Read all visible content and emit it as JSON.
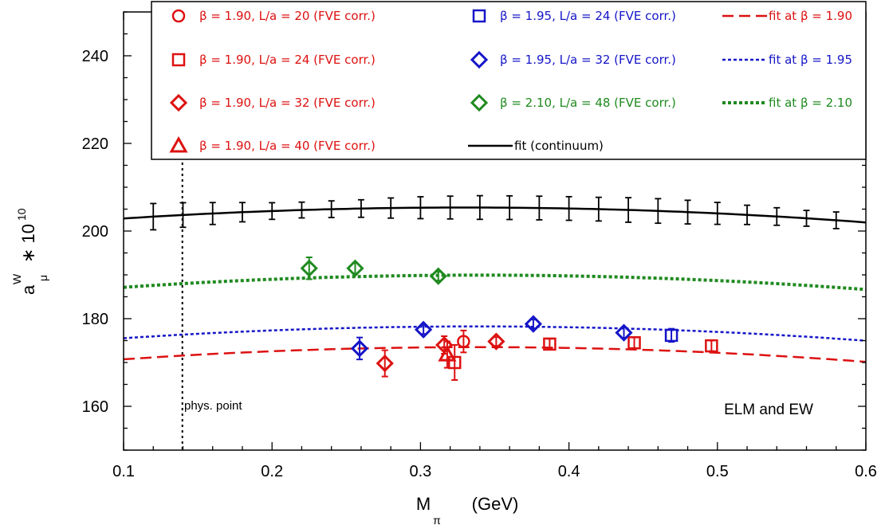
{
  "chart_data": {
    "type": "scatter",
    "xlabel": "M",
    "xlabel_sub": "π",
    "xlabel_unit": "(GeV)",
    "ylabel": "a",
    "ylabel_sub": "μ",
    "ylabel_sup": "W",
    "ylabel_factor": "∗ 10",
    "ylabel_factor_sup": "10",
    "xlim": [
      0.1,
      0.6
    ],
    "ylim": [
      150,
      250
    ],
    "xticks": [
      0.1,
      0.2,
      0.3,
      0.4,
      0.5,
      0.6
    ],
    "xtick_labels": [
      "0.1",
      "0.2",
      "0.3",
      "0.4",
      "0.5",
      "0.6"
    ],
    "yticks": [
      160,
      180,
      200,
      220,
      240
    ],
    "ytick_labels": [
      "160",
      "180",
      "200",
      "220",
      "240"
    ],
    "grid": false,
    "legend_position": "top",
    "series": [
      {
        "name": "β = 1.90, L/a = 20 (FVE corr.)",
        "marker": "circle",
        "color": "#dd1111",
        "points": [
          {
            "x": 0.329,
            "y": 174.8,
            "err": 2.5
          }
        ]
      },
      {
        "name": "β = 1.90, L/a = 24 (FVE corr.)",
        "marker": "square",
        "color": "#dd1111",
        "points": [
          {
            "x": 0.323,
            "y": 170.0,
            "err": 4.0
          },
          {
            "x": 0.387,
            "y": 174.2,
            "err": 1.2
          },
          {
            "x": 0.444,
            "y": 174.5,
            "err": 1.2
          },
          {
            "x": 0.496,
            "y": 173.8,
            "err": 1.2
          }
        ]
      },
      {
        "name": "β = 1.90, L/a = 32 (FVE corr.)",
        "marker": "diamond",
        "color": "#dd1111",
        "points": [
          {
            "x": 0.276,
            "y": 169.8,
            "err": 3.0
          },
          {
            "x": 0.316,
            "y": 174.0,
            "err": 2.0
          },
          {
            "x": 0.351,
            "y": 174.8,
            "err": 1.0
          }
        ]
      },
      {
        "name": "β = 1.90, L/a = 40 (FVE corr.)",
        "marker": "triangle",
        "color": "#dd1111",
        "points": [
          {
            "x": 0.318,
            "y": 171.8,
            "err": 3.0
          }
        ]
      },
      {
        "name": "β = 1.95, L/a = 24 (FVE corr.)",
        "marker": "square",
        "color": "#1515c8",
        "points": [
          {
            "x": 0.469,
            "y": 176.2,
            "err": 1.5
          }
        ]
      },
      {
        "name": "β = 1.95, L/a = 32 (FVE corr.)",
        "marker": "diamond",
        "color": "#1515c8",
        "points": [
          {
            "x": 0.259,
            "y": 173.2,
            "err": 2.5
          },
          {
            "x": 0.302,
            "y": 177.5,
            "err": 1.0
          },
          {
            "x": 0.376,
            "y": 178.8,
            "err": 1.0
          },
          {
            "x": 0.437,
            "y": 176.8,
            "err": 1.2
          }
        ]
      },
      {
        "name": "β = 2.10, L/a = 48 (FVE corr.)",
        "marker": "diamond",
        "color": "#1f8a1f",
        "points": [
          {
            "x": 0.225,
            "y": 191.5,
            "err": 2.5
          },
          {
            "x": 0.256,
            "y": 191.5,
            "err": 1.2
          },
          {
            "x": 0.312,
            "y": 189.7,
            "err": 1.0
          }
        ]
      }
    ],
    "fits": [
      {
        "name": "fit at β = 1.90",
        "style": "dashed",
        "color": "#dd1111",
        "x": [
          0.1,
          0.2,
          0.3,
          0.4,
          0.5,
          0.6
        ],
        "y": [
          170.8,
          172.5,
          173.3,
          173.3,
          172.5,
          170.0
        ]
      },
      {
        "name": "fit at β = 1.95",
        "style": "dotted",
        "color": "#1515c8",
        "x": [
          0.1,
          0.2,
          0.3,
          0.4,
          0.5,
          0.6
        ],
        "y": [
          175.6,
          177.3,
          178.0,
          178.0,
          177.3,
          174.8
        ]
      },
      {
        "name": "fit at β = 2.10",
        "style": "dotted-thick",
        "color": "#1f8a1f",
        "x": [
          0.1,
          0.2,
          0.3,
          0.4,
          0.5,
          0.6
        ],
        "y": [
          187.2,
          189.0,
          189.7,
          189.7,
          189.0,
          186.5
        ]
      },
      {
        "name": "fit (continuum)",
        "style": "solid",
        "color": "#000000",
        "x": [
          0.1,
          0.2,
          0.3,
          0.4,
          0.5,
          0.6
        ],
        "y": [
          203.0,
          204.4,
          205.2,
          205.2,
          204.3,
          201.8
        ],
        "band_x": [
          0.12,
          0.14,
          0.16,
          0.18,
          0.2,
          0.22,
          0.24,
          0.26,
          0.28,
          0.3,
          0.32,
          0.34,
          0.36,
          0.38,
          0.4,
          0.42,
          0.44,
          0.46,
          0.48,
          0.5,
          0.52,
          0.54,
          0.56,
          0.58
        ],
        "band_err": [
          3.0,
          2.8,
          2.5,
          2.2,
          1.9,
          1.8,
          1.9,
          2.0,
          2.3,
          2.5,
          2.6,
          2.7,
          2.7,
          2.7,
          2.7,
          2.7,
          2.8,
          2.8,
          2.7,
          2.5,
          2.2,
          2.0,
          1.8,
          1.9
        ]
      }
    ],
    "physical_point": {
      "x": 0.1396,
      "label": "phys. point"
    },
    "annotation": "ELM and EW",
    "legend_layout": [
      [
        "β = 1.90, L/a = 20 (FVE corr.)",
        "β = 1.95, L/a = 24 (FVE corr.)",
        "fit at β = 1.90"
      ],
      [
        "β = 1.90, L/a = 24 (FVE corr.)",
        "β = 1.95, L/a = 32 (FVE corr.)",
        "fit at β = 1.95"
      ],
      [
        "β = 1.90, L/a = 32 (FVE corr.)",
        "β = 2.10, L/a = 48 (FVE corr.)",
        "fit at β = 2.10"
      ],
      [
        "β = 1.90, L/a = 40 (FVE corr.)",
        "fit (continuum)"
      ]
    ]
  }
}
